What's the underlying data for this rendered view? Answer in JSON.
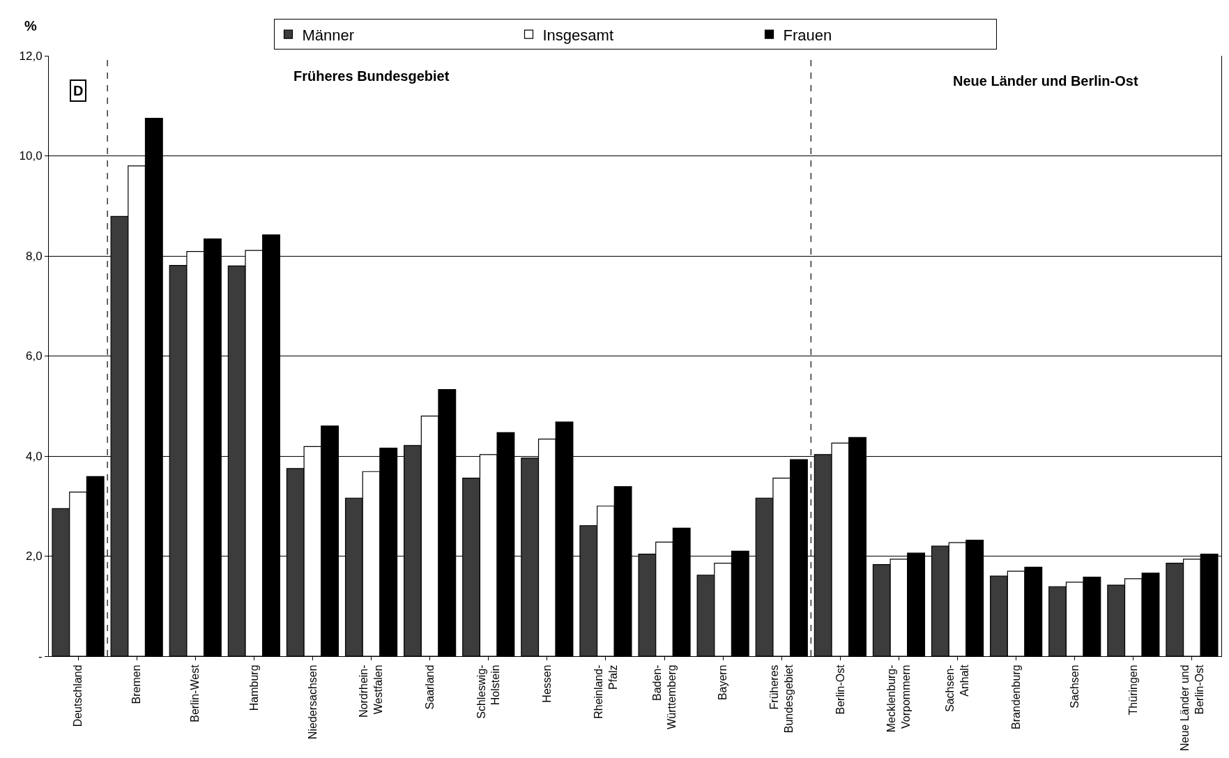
{
  "chart_data": {
    "type": "bar",
    "ylabel": "%",
    "categories": [
      "Deutschland",
      "Bremen",
      "Berlin-West",
      "Hamburg",
      "Niedersachsen",
      "Nordrhein-\nWestfalen",
      "Saarland",
      "Schleswig-\nHolstein",
      "Hessen",
      "Rheinland-\nPfalz",
      "Baden-\nWürttemberg",
      "Bayern",
      "Früheres\nBundesgebiet",
      "Berlin-Ost",
      "Mecklenburg-\nVorpommern",
      "Sachsen-\nAnhalt",
      "Brandenburg",
      "Sachsen",
      "Thüringen",
      "Neue Länder und\nBerlin-Ost"
    ],
    "series": [
      {
        "name": "Männer",
        "color": "#3c3c3c",
        "values": [
          2.95,
          8.79,
          7.81,
          7.8,
          3.75,
          3.16,
          4.21,
          3.56,
          3.96,
          2.61,
          2.04,
          1.62,
          3.16,
          4.03,
          1.83,
          2.2,
          1.6,
          1.39,
          1.42,
          1.86
        ]
      },
      {
        "name": "Insgesamt",
        "color": "#ffffff",
        "values": [
          3.28,
          9.8,
          8.09,
          8.11,
          4.19,
          3.69,
          4.8,
          4.03,
          4.34,
          3.0,
          2.28,
          1.86,
          3.56,
          4.26,
          1.94,
          2.27,
          1.7,
          1.48,
          1.55,
          1.94
        ]
      },
      {
        "name": "Frauen",
        "color": "#000000",
        "values": [
          3.59,
          10.75,
          8.34,
          8.42,
          4.6,
          4.16,
          5.33,
          4.47,
          4.68,
          3.39,
          2.56,
          2.1,
          3.93,
          4.37,
          2.06,
          2.32,
          1.78,
          1.58,
          1.66,
          2.04
        ]
      }
    ],
    "ylim": [
      0,
      12
    ],
    "yticks": [
      {
        "value": 0,
        "label": "-"
      },
      {
        "value": 2,
        "label": "2,0"
      },
      {
        "value": 4,
        "label": "4,0"
      },
      {
        "value": 6,
        "label": "6,0"
      },
      {
        "value": 8,
        "label": "8,0"
      },
      {
        "value": 10,
        "label": "10,0"
      },
      {
        "value": 12,
        "label": "12,0"
      }
    ],
    "grid": "y",
    "legend": "top",
    "annotations": [
      "D",
      "Früheres Bundesgebiet",
      "Neue Länder und Berlin-Ost"
    ]
  }
}
